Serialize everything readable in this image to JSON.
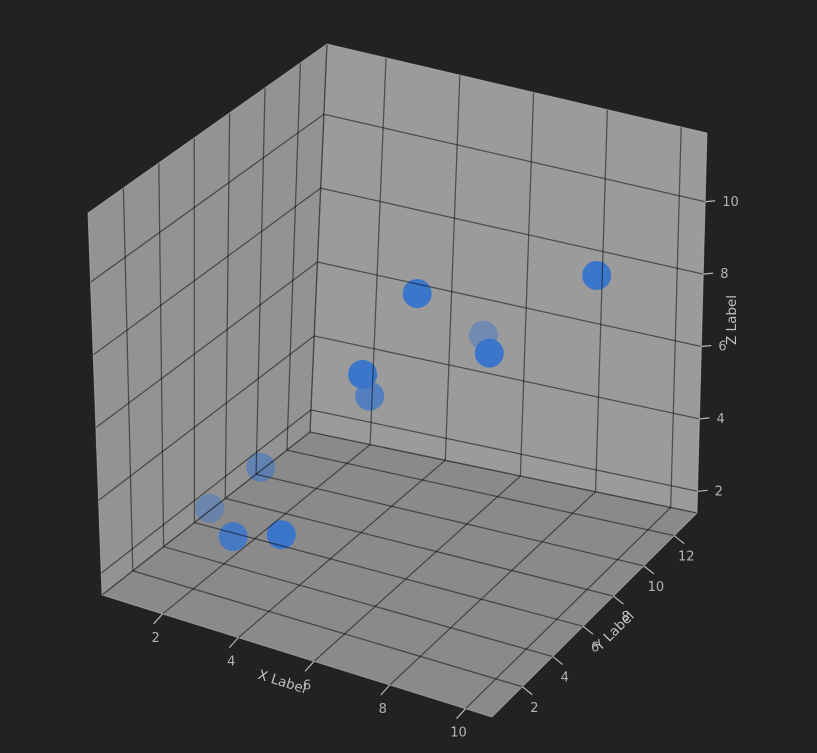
{
  "colors": {
    "background": "#222222",
    "pane_left": "#939393",
    "pane_right": "#9b9b9b",
    "pane_floor": "#8a8a8a",
    "grid_line": "rgba(0,0,0,0.5)",
    "outer_edge": "#bdbdbd",
    "tick_mark": "#b5b5b5",
    "tick_text": "#b3b3b3",
    "label_text": "#c0c0c0",
    "marker": "#3b76cb"
  },
  "chart_data": {
    "type": "scatter",
    "projection": "3d",
    "title": "",
    "xlabel": "X Label",
    "ylabel": "Y Label",
    "zlabel": "Z Label",
    "xticks": [
      2,
      4,
      6,
      8,
      10
    ],
    "yticks": [
      2,
      4,
      6,
      8,
      10,
      12
    ],
    "zticks": [
      2,
      4,
      6,
      8,
      10
    ],
    "xlim": [
      0.4,
      10.7
    ],
    "ylim": [
      0.0,
      13.5
    ],
    "zlim": [
      1.4,
      11.9
    ],
    "grid": true,
    "legend_position": "none",
    "marker_radius_px": 14.5,
    "series": [
      {
        "name": "points",
        "marker": "circle",
        "color": "#3b76cb",
        "points": [
          {
            "x": 7.3,
            "y": 7.7,
            "z": 7.8,
            "opacity": 0.45
          },
          {
            "x": 4.9,
            "y": 6.3,
            "z": 6.0,
            "opacity": 0.75
          },
          {
            "x": 1.8,
            "y": 3.6,
            "z": 3.0,
            "opacity": 0.45
          },
          {
            "x": 2.7,
            "y": 4.7,
            "z": 4.0,
            "opacity": 0.55
          },
          {
            "x": 4.6,
            "y": 9.9,
            "z": 7.4,
            "opacity": 1.0
          },
          {
            "x": 8.6,
            "y": 11.7,
            "z": 8.2,
            "opacity": 1.0
          },
          {
            "x": 7.0,
            "y": 8.8,
            "z": 6.8,
            "opacity": 1.0
          },
          {
            "x": 4.5,
            "y": 6.8,
            "z": 6.3,
            "opacity": 1.0
          },
          {
            "x": 2.5,
            "y": 3.4,
            "z": 2.5,
            "opacity": 0.85
          },
          {
            "x": 3.4,
            "y": 4.3,
            "z": 2.5,
            "opacity": 1.0
          }
        ]
      }
    ]
  }
}
